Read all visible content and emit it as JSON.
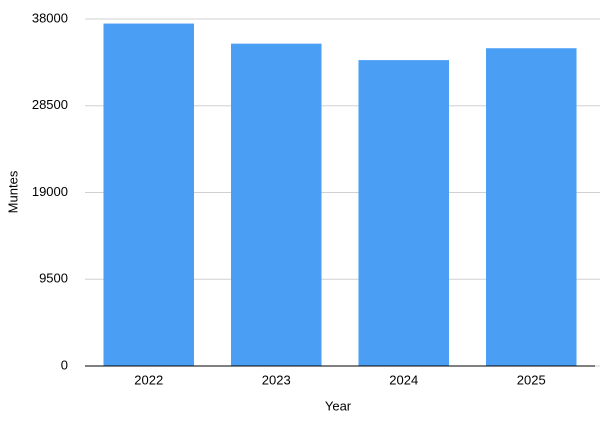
{
  "chart_data": {
    "type": "bar",
    "x_label": "Year",
    "y_label": "Muntes",
    "categories": [
      "2022",
      "2023",
      "2024",
      "2025"
    ],
    "values": [
      37500,
      35300,
      33500,
      34800
    ],
    "color": "#4a9ff5",
    "ylim": [
      0,
      38000
    ],
    "yticks": [
      0,
      9500,
      19000,
      28500,
      38000
    ],
    "grid": true
  }
}
